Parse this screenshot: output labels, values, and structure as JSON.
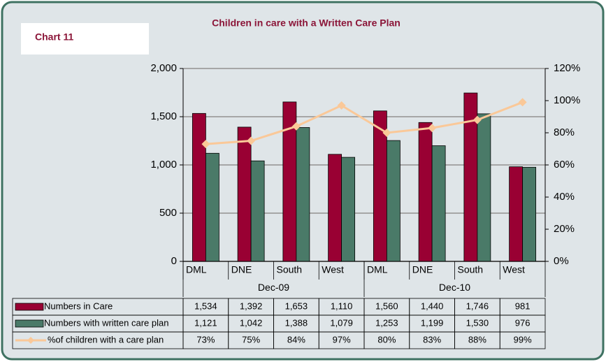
{
  "chart_data": {
    "type": "bar",
    "title": "Children in care with a Written Care Plan",
    "label": "Chart 11",
    "categories": [
      "DML",
      "DNE",
      "South",
      "West",
      "DML",
      "DNE",
      "South",
      "West"
    ],
    "groups": [
      "Dec-09",
      "Dec-10"
    ],
    "series": [
      {
        "name": "Numbers in Care",
        "type": "bar",
        "color": "#990033",
        "values": [
          1534,
          1392,
          1653,
          1110,
          1560,
          1440,
          1746,
          981
        ],
        "value_labels": [
          "1,534",
          "1,392",
          "1,653",
          "1,110",
          "1,560",
          "1,440",
          "1,746",
          "981"
        ]
      },
      {
        "name": "Numbers with written care plan",
        "type": "bar",
        "color": "#4a7a68",
        "values": [
          1121,
          1042,
          1388,
          1079,
          1253,
          1199,
          1530,
          976
        ],
        "value_labels": [
          "1,121",
          "1,042",
          "1,388",
          "1,079",
          "1,253",
          "1,199",
          "1,530",
          "976"
        ]
      },
      {
        "name": "%of children with a care plan",
        "type": "line",
        "axis": "y2",
        "color": "#fac898",
        "values": [
          73,
          75,
          84,
          97,
          80,
          83,
          88,
          99
        ],
        "value_labels": [
          "73%",
          "75%",
          "84%",
          "97%",
          "80%",
          "83%",
          "88%",
          "99%"
        ]
      }
    ],
    "ylim": [
      0,
      2000
    ],
    "yticks": [
      0,
      500,
      {
        "value": 1000,
        "label": "1,000"
      },
      {
        "value": 1500,
        "label": "1,500"
      },
      {
        "value": 2000,
        "label": "2,000"
      }
    ],
    "y2lim": [
      0,
      120
    ],
    "y2ticks": [
      {
        "value": 0,
        "label": "0%"
      },
      {
        "value": 20,
        "label": "20%"
      },
      {
        "value": 40,
        "label": "40%"
      },
      {
        "value": 60,
        "label": "60%"
      },
      {
        "value": 80,
        "label": "80%"
      },
      {
        "value": 100,
        "label": "100%"
      },
      {
        "value": 120,
        "label": "120%"
      }
    ],
    "grid": true
  }
}
